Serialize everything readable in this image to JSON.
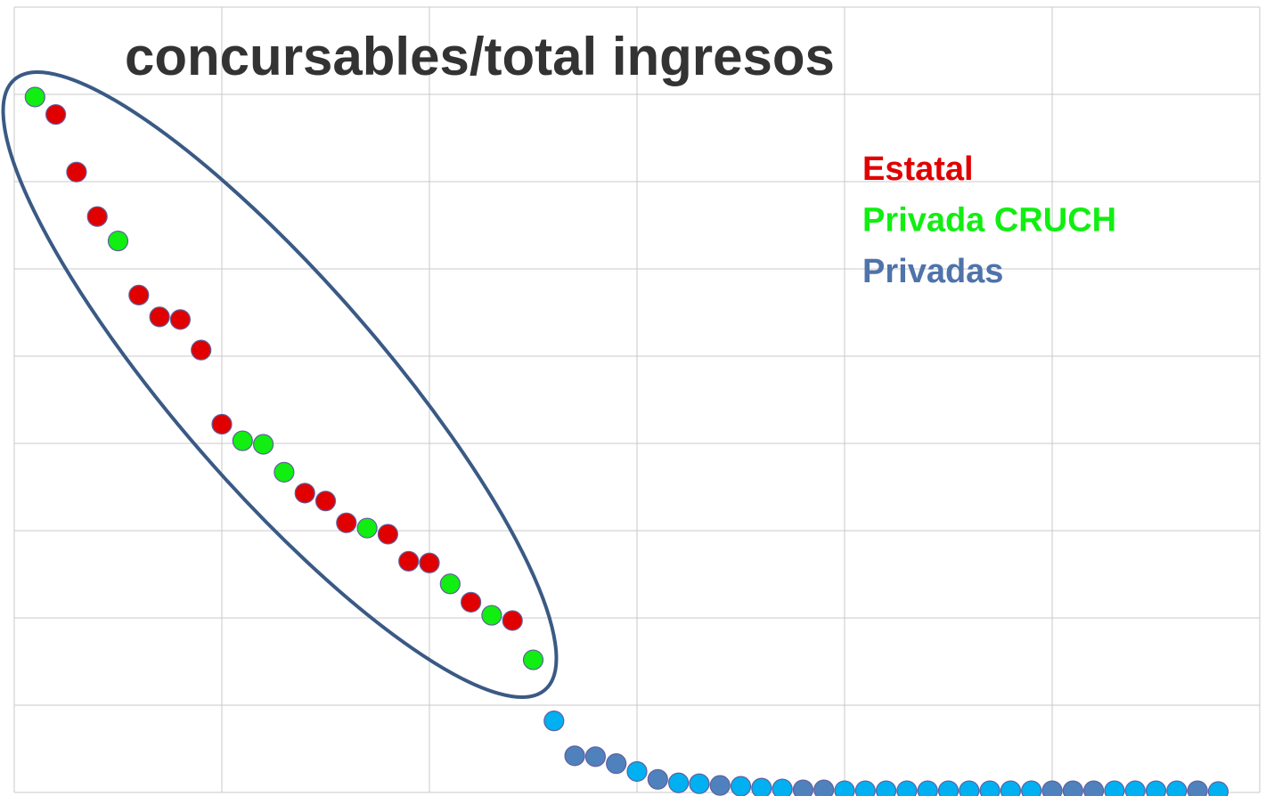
{
  "chart_data": {
    "type": "scatter",
    "title": "concursables/total ingresos",
    "xlim": [
      0,
      60
    ],
    "xticks": [
      0,
      10,
      20,
      30,
      40,
      50,
      60
    ],
    "ylim": [
      0,
      9
    ],
    "yticks": [
      0,
      1,
      2,
      3,
      4,
      5,
      6,
      7,
      8,
      9
    ],
    "grid": true,
    "legend": "upper right",
    "series": [
      {
        "name": "Estatal",
        "color": "#e00000",
        "x": [
          2,
          3,
          4,
          6,
          7,
          8,
          9,
          10,
          14,
          15,
          16,
          18,
          19,
          20,
          22,
          24
        ],
        "values": [
          7.77,
          7.11,
          6.6,
          5.7,
          5.45,
          5.42,
          5.07,
          4.22,
          3.43,
          3.34,
          3.09,
          2.96,
          2.65,
          2.63,
          2.18,
          1.97
        ]
      },
      {
        "name": "Privada CRUCH",
        "color": "#11ee11",
        "x": [
          1,
          5,
          11,
          12,
          13,
          17,
          21,
          23,
          25
        ],
        "values": [
          7.97,
          6.32,
          4.03,
          3.99,
          3.67,
          3.03,
          2.39,
          2.03,
          1.52
        ]
      },
      {
        "name": "Privadas",
        "color": "#4f73aa",
        "x": [
          26,
          27,
          28,
          29,
          30,
          31,
          32,
          33,
          34,
          35,
          36,
          37,
          38,
          39,
          40,
          41,
          42,
          43,
          44,
          45,
          46,
          47,
          48,
          49,
          50,
          51,
          52,
          53,
          54,
          55,
          56,
          57,
          58
        ],
        "values": [
          0.82,
          0.42,
          0.41,
          0.33,
          0.24,
          0.15,
          0.11,
          0.1,
          0.08,
          0.07,
          0.05,
          0.04,
          0.03,
          0.03,
          0.02,
          0.02,
          0.02,
          0.02,
          0.02,
          0.02,
          0.02,
          0.02,
          0.02,
          0.02,
          0.02,
          0.02,
          0.02,
          0.02,
          0.02,
          0.02,
          0.02,
          0.02,
          0.01
        ],
        "colors": [
          "#00b0f0",
          "#4f81bd",
          "#4f81bd",
          "#4f81bd",
          "#00b0f0",
          "#4f81bd",
          "#00b0f0",
          "#00b0f0",
          "#4f81bd",
          "#00b0f0",
          "#00b0f0",
          "#00b0f0",
          "#4f81bd",
          "#4f81bd",
          "#00b0f0",
          "#00b0f0",
          "#00b0f0",
          "#00b0f0",
          "#00b0f0",
          "#00b0f0",
          "#00b0f0",
          "#00b0f0",
          "#00b0f0",
          "#00b0f0",
          "#4f81bd",
          "#4f81bd",
          "#4f81bd",
          "#00b0f0",
          "#00b0f0",
          "#00b0f0",
          "#00b0f0",
          "#4f81bd",
          "#00b0f0"
        ]
      }
    ]
  }
}
